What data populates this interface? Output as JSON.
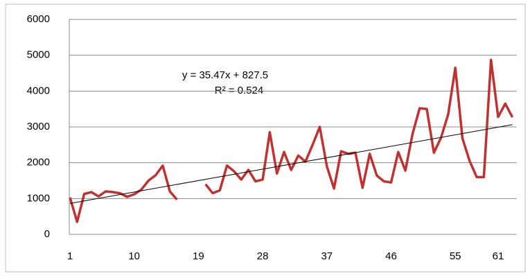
{
  "chart_data": {
    "type": "line",
    "categories": [
      "1",
      null,
      null,
      null,
      null,
      null,
      null,
      null,
      null,
      "10",
      null,
      null,
      null,
      null,
      null,
      null,
      null,
      null,
      "19",
      null,
      null,
      null,
      null,
      null,
      null,
      null,
      null,
      "28",
      null,
      null,
      null,
      null,
      null,
      null,
      null,
      null,
      "37",
      null,
      null,
      null,
      null,
      null,
      null,
      null,
      null,
      "46",
      null,
      null,
      null,
      null,
      null,
      null,
      null,
      null,
      "55",
      null,
      null,
      null,
      null,
      null,
      "61",
      null,
      null
    ],
    "series": [
      {
        "color": "#c0312f",
        "values": [
          1030,
          350,
          1130,
          1180,
          1060,
          1200,
          1180,
          1150,
          1050,
          1120,
          1250,
          1500,
          1650,
          1920,
          1200,
          970,
          null,
          null,
          null,
          1400,
          1150,
          1230,
          1920,
          1760,
          1530,
          1800,
          1480,
          1530,
          2850,
          1700,
          2300,
          1800,
          2200,
          2030,
          2500,
          3000,
          1900,
          1280,
          2320,
          2250,
          2280,
          1300,
          2250,
          1640,
          1480,
          1450,
          2300,
          1780,
          2800,
          3520,
          3500,
          2280,
          2700,
          3350,
          4650,
          2680,
          2050,
          1600,
          1600,
          4870,
          3280,
          3650,
          3270
        ]
      }
    ],
    "trendline": {
      "slope": 35.47,
      "intercept": 827.5,
      "color": "#000000"
    },
    "annotations": [
      "y = 35.47x + 827.5",
      "R² = 0.524"
    ],
    "ylim": [
      0,
      6000
    ],
    "yticks": [
      0,
      1000,
      2000,
      3000,
      4000,
      5000,
      6000
    ],
    "grid": true
  }
}
